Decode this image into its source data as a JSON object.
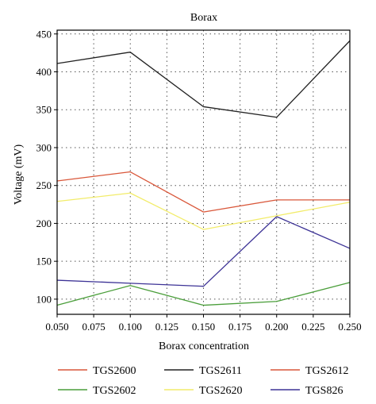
{
  "chart_data": {
    "type": "line",
    "title": "Borax",
    "xlabel": "Borax concentration",
    "ylabel": "Voltage (mV)",
    "xlim": [
      0.05,
      0.25
    ],
    "ylim": [
      80,
      455
    ],
    "x_ticks": [
      "0.050",
      "0.075",
      "0.100",
      "0.125",
      "0.150",
      "0.175",
      "0.200",
      "0.225",
      "0.250"
    ],
    "y_ticks": [
      "100",
      "150",
      "200",
      "250",
      "300",
      "350",
      "400",
      "450"
    ],
    "x": [
      0.05,
      0.1,
      0.15,
      0.2,
      0.25
    ],
    "grid": true,
    "legend_position": "bottom",
    "series": [
      {
        "name": "TGS2600",
        "color": "#d9573a",
        "values": [
          256,
          268,
          215,
          231,
          231
        ]
      },
      {
        "name": "TGS2611",
        "color": "#222222",
        "values": [
          411,
          426,
          354,
          340,
          441
        ]
      },
      {
        "name": "TGS2612",
        "color": "#d9573a",
        "values": [
          null,
          null,
          null,
          null,
          null
        ]
      },
      {
        "name": "TGS2602",
        "color": "#4a9e3a",
        "values": [
          92,
          118,
          92,
          97,
          122
        ]
      },
      {
        "name": "TGS2620",
        "color": "#f2ec6a",
        "values": [
          229,
          240,
          192,
          210,
          228
        ]
      },
      {
        "name": "TGS826",
        "color": "#3d3396",
        "values": [
          125,
          121,
          117,
          209,
          167
        ]
      }
    ]
  }
}
